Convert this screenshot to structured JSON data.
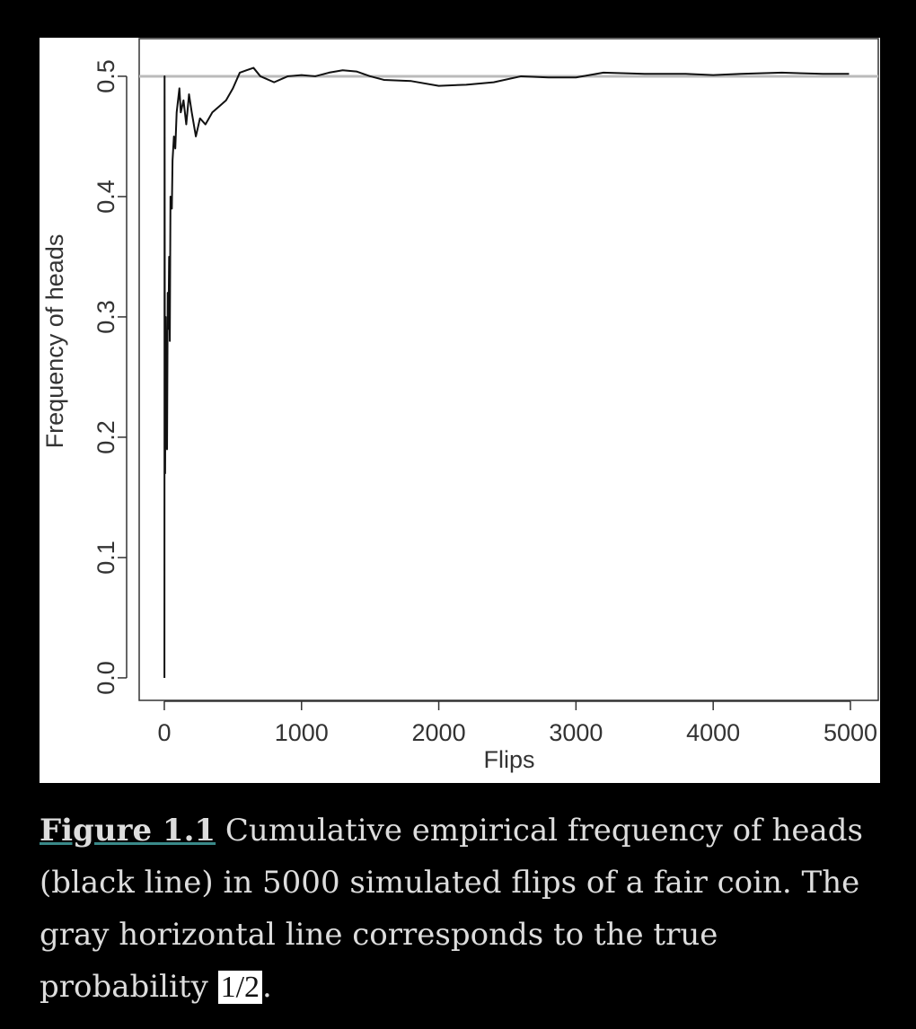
{
  "chart_data": {
    "type": "line",
    "xlabel": "Flips",
    "ylabel": "Frequency of heads",
    "x": [
      1,
      2,
      4,
      6,
      10,
      15,
      20,
      25,
      30,
      35,
      40,
      45,
      55,
      60,
      70,
      80,
      90,
      100,
      110,
      120,
      140,
      160,
      180,
      200,
      230,
      260,
      300,
      350,
      400,
      450,
      500,
      550,
      600,
      650,
      700,
      800,
      900,
      1000,
      1100,
      1200,
      1300,
      1400,
      1500,
      1600,
      1800,
      2000,
      2200,
      2400,
      2600,
      2800,
      3000,
      3200,
      3500,
      3800,
      4000,
      4200,
      4500,
      4800,
      4990
    ],
    "series": [
      {
        "color": "#111111",
        "values": [
          0,
          0.5,
          0.25,
          0.17,
          0.3,
          0.2,
          0.19,
          0.32,
          0.29,
          0.35,
          0.28,
          0.4,
          0.39,
          0.43,
          0.45,
          0.44,
          0.47,
          0.48,
          0.49,
          0.47,
          0.48,
          0.46,
          0.485,
          0.47,
          0.45,
          0.465,
          0.46,
          0.47,
          0.475,
          0.48,
          0.49,
          0.503,
          0.505,
          0.507,
          0.5,
          0.495,
          0.5,
          0.501,
          0.5,
          0.503,
          0.505,
          0.504,
          0.5,
          0.497,
          0.496,
          0.492,
          0.493,
          0.495,
          0.5,
          0.499,
          0.499,
          0.503,
          0.502,
          0.502,
          0.501,
          0.502,
          0.503,
          0.502,
          0.502
        ]
      }
    ],
    "hline": 0.5,
    "hline_color": "#bbbbbb",
    "xlim": [
      -183,
      5203
    ],
    "ylim": [
      -0.0187,
      0.5313
    ],
    "xticks": [
      0,
      1000,
      2000,
      3000,
      4000,
      5000
    ],
    "yticks": [
      {
        "value": 0,
        "label": "0.0"
      },
      0.1,
      0.2,
      0.3,
      0.4,
      0.5
    ]
  },
  "caption": {
    "label": "Figure 1.1",
    "text": " Cumulative empirical frequency of heads (black line) in 5000 simulated flips of a fair coin. The gray horizontal line corresponds to the true probability ",
    "math": "1/2",
    "end": "."
  }
}
